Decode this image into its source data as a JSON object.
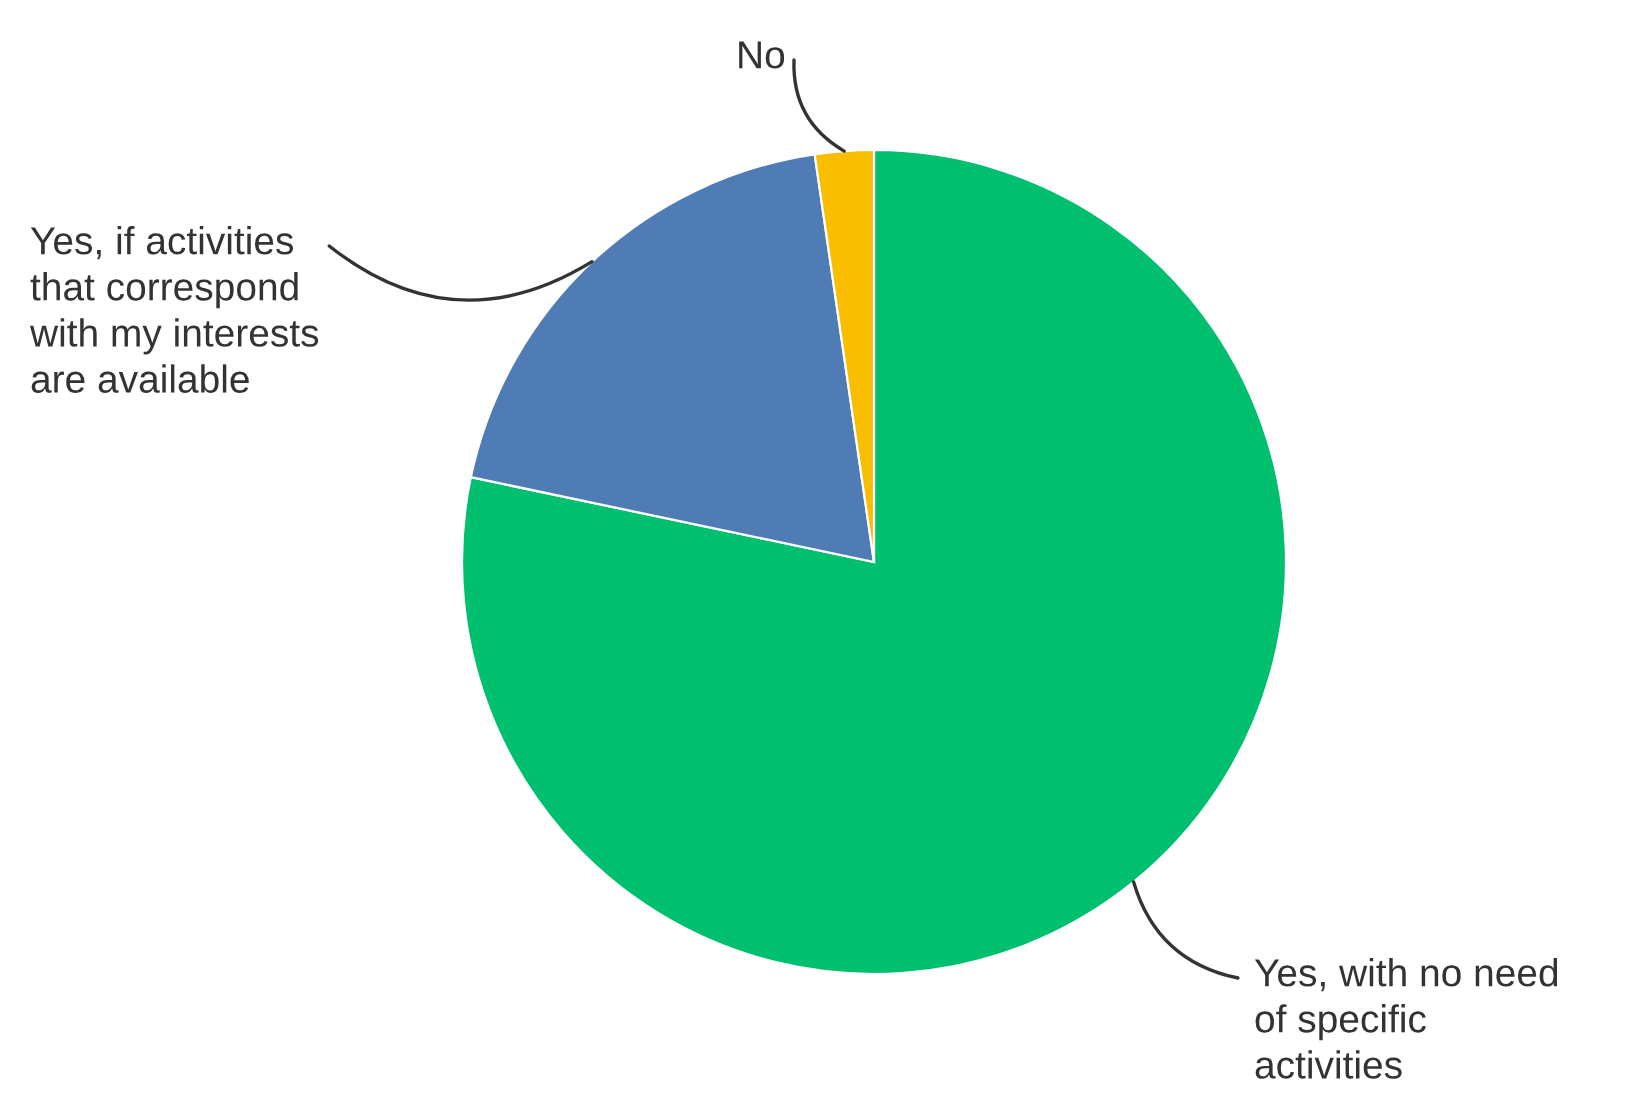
{
  "chart_data": {
    "type": "pie",
    "categories": [
      "Yes, with no need\nof specific\nactivities",
      "Yes, if activities\nthat correspond\nwith my interests\nare available",
      "No"
    ],
    "values": [
      78.3,
      19.4,
      2.3
    ],
    "colors": [
      "#00bf6f",
      "#507cb6",
      "#f9be00"
    ]
  }
}
